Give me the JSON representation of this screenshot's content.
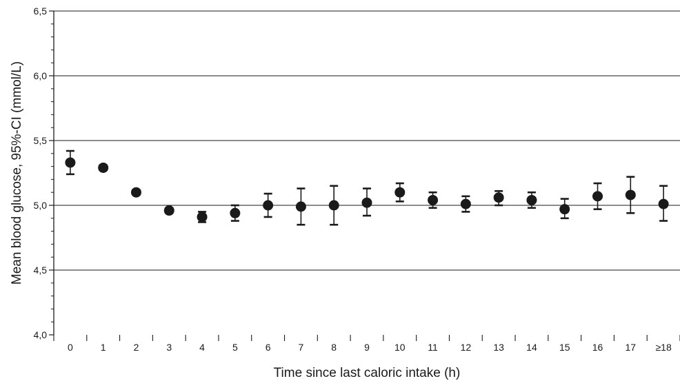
{
  "chart_data": {
    "type": "scatter",
    "title": "",
    "xlabel": "Time since last caloric intake (h)",
    "ylabel": "Mean blood glucose, 95%-CI (mmol/L)",
    "categories": [
      "0",
      "1",
      "2",
      "3",
      "4",
      "5",
      "6",
      "7",
      "8",
      "9",
      "10",
      "11",
      "12",
      "13",
      "14",
      "15",
      "16",
      "17",
      "≥18"
    ],
    "ylim": [
      4.0,
      6.5
    ],
    "yticks": [
      4.0,
      4.5,
      5.0,
      5.5,
      6.0,
      6.5
    ],
    "ytick_labels": [
      "4,0",
      "4,5",
      "5,0",
      "5,5",
      "6,0",
      "6,5"
    ],
    "grid": "horizontal",
    "marker_color": "#1a1a1a",
    "series": [
      {
        "values": [
          5.33,
          5.29,
          5.1,
          4.96,
          4.91,
          4.94,
          5.0,
          4.99,
          5.0,
          5.02,
          5.1,
          5.04,
          5.01,
          5.06,
          5.04,
          4.97,
          5.07,
          5.08,
          5.01
        ],
        "ci_low": [
          5.24,
          5.27,
          5.08,
          4.94,
          4.87,
          4.88,
          4.91,
          4.85,
          4.85,
          4.92,
          5.03,
          4.98,
          4.95,
          5.0,
          4.98,
          4.9,
          4.97,
          4.94,
          4.88
        ],
        "ci_high": [
          5.42,
          5.31,
          5.12,
          4.98,
          4.95,
          5.0,
          5.09,
          5.13,
          5.15,
          5.13,
          5.17,
          5.1,
          5.07,
          5.11,
          5.1,
          5.05,
          5.17,
          5.22,
          5.15
        ]
      }
    ]
  }
}
